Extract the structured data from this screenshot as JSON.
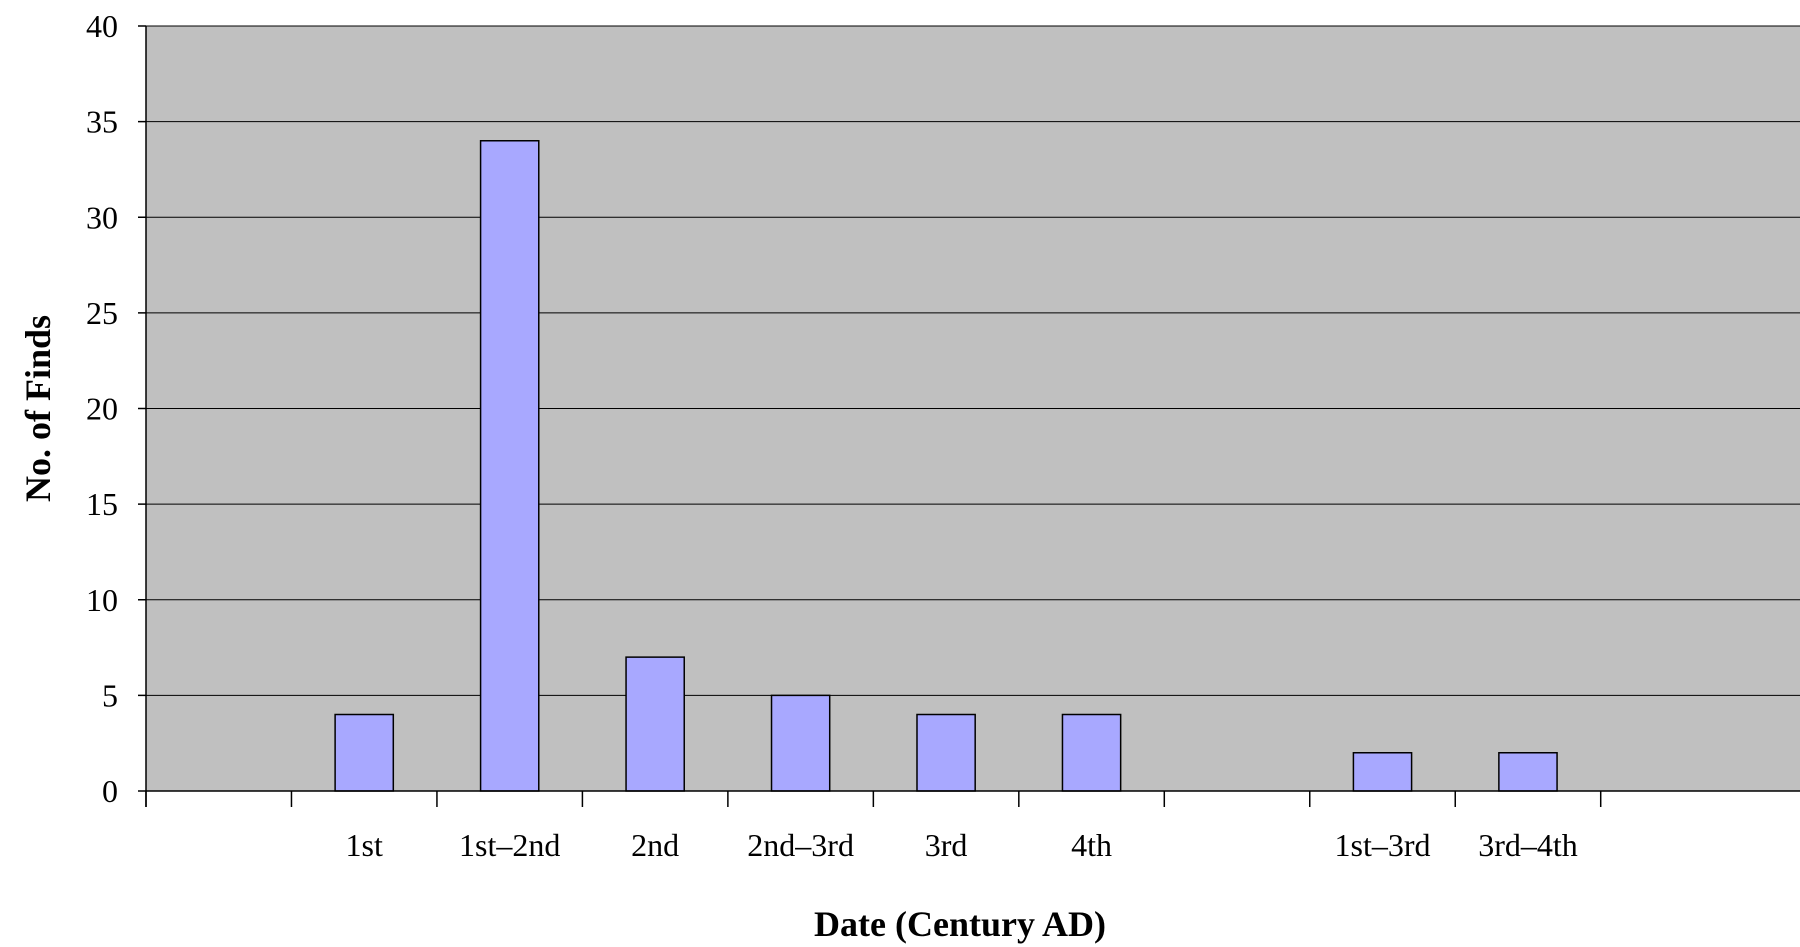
{
  "colors": {
    "plot_background": "#c0c0c0",
    "bar_fill": "#a8a8ff",
    "bar_stroke": "#000000",
    "gridline": "#000000"
  },
  "chart_data": {
    "type": "bar",
    "categories": [
      "",
      "1st",
      "1st–2nd",
      "2nd",
      "2nd–3rd",
      "3rd",
      "4th",
      "",
      "1st–3rd",
      "3rd–4th"
    ],
    "values": [
      0,
      4,
      34,
      7,
      5,
      4,
      4,
      0,
      2,
      2
    ],
    "title": "",
    "xlabel": "Date (Century AD)",
    "ylabel": "No. of Finds",
    "ylim": [
      0,
      40
    ],
    "yticks": [
      0,
      5,
      10,
      15,
      20,
      25,
      30,
      35,
      40
    ],
    "grid": "horizontal",
    "legend": "none"
  }
}
